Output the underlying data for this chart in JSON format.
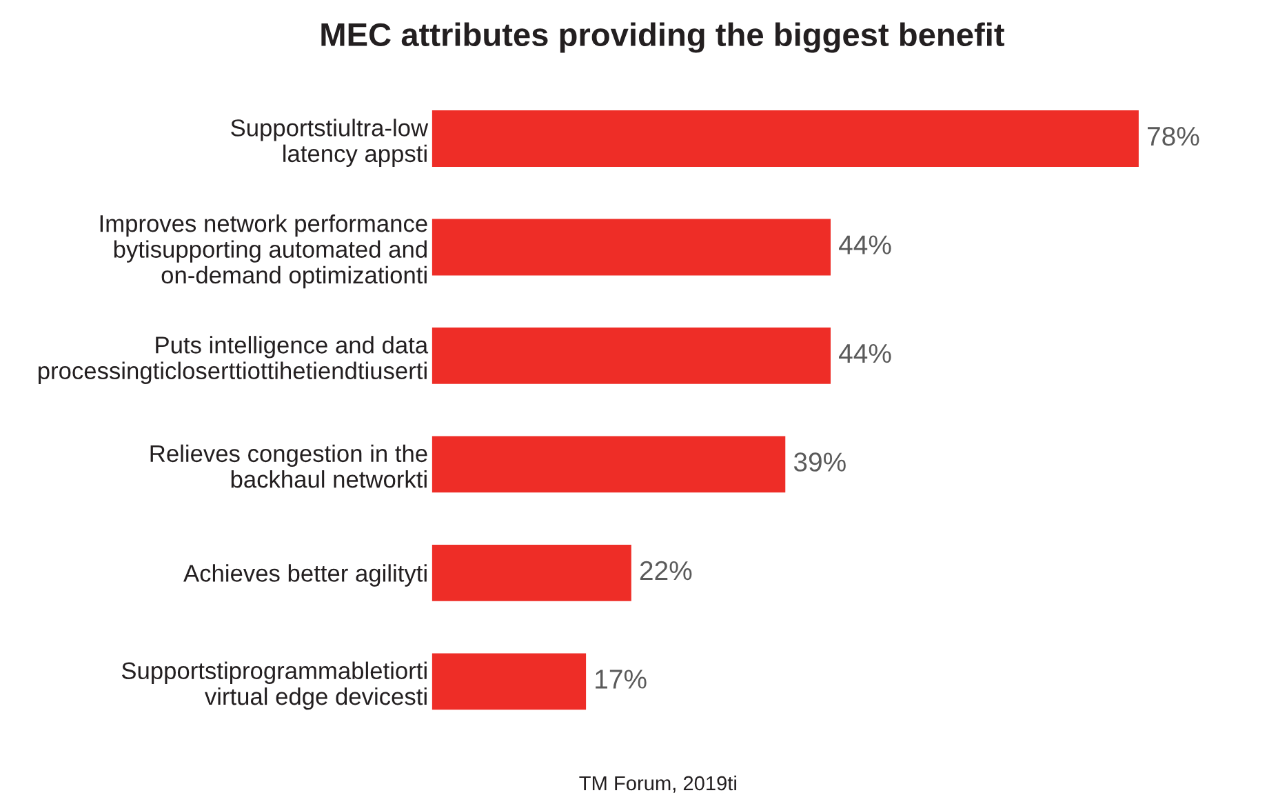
{
  "chart_data": {
    "type": "bar",
    "orientation": "horizontal",
    "title": "MEC attributes providing the biggest benefit",
    "categories": [
      "Supportstiultra-low\nlatency appsti",
      "Improves network performance\nbytisupporting automated and\non-demand optimizationti",
      "Puts intelligence and data\nprocessingticloserttiottihetiendtiuserti",
      "Relieves congestion in the\nbackhaul networkti",
      "Achieves better agilityti",
      "Supportstiprogrammabletiorti\nvirtual edge devicesti"
    ],
    "values": [
      78,
      44,
      44,
      39,
      22,
      17
    ],
    "value_labels": [
      "78%",
      "44%",
      "44%",
      "39%",
      "22%",
      "17%"
    ],
    "color": "#ee2d27",
    "annotations": [
      "TM Forum, 2019ti"
    ]
  }
}
